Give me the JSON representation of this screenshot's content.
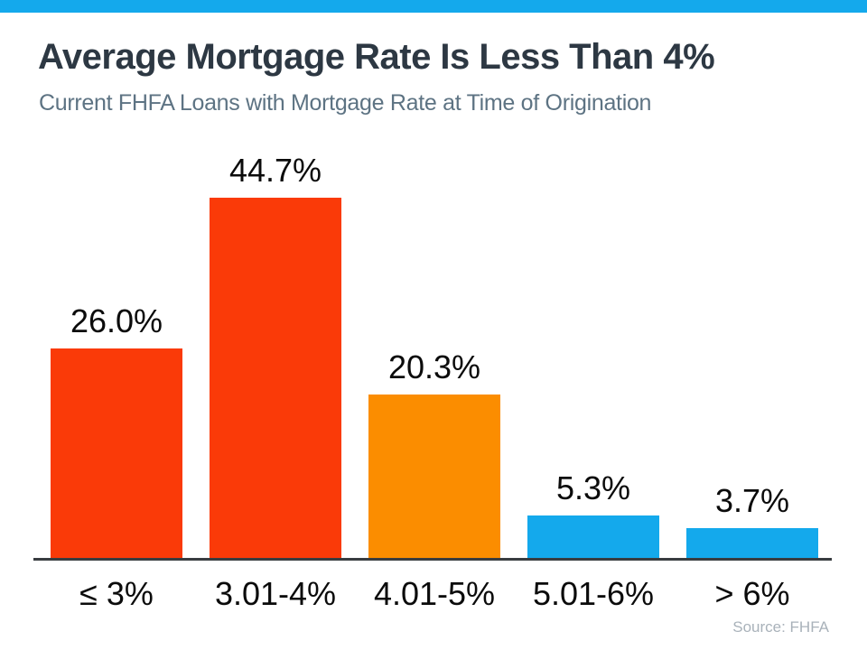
{
  "colors": {
    "accent_bar": "#14A9EC",
    "red_bar": "#FA3A08",
    "orange_bar": "#FB8D00",
    "blue_bar": "#14A9EC",
    "title_text": "#2D3843",
    "subtitle_text": "#5D7383",
    "label_text": "#0B0B0B",
    "axis_line": "#383C40",
    "source_text": "#A9B2BA"
  },
  "header": {
    "title": "Average Mortgage Rate Is Less Than 4%",
    "subtitle": "Current FHFA Loans with Mortgage Rate at Time of Origination"
  },
  "chart_data": {
    "type": "bar",
    "title": "Average Mortgage Rate Is Less Than 4%",
    "subtitle": "Current FHFA Loans with Mortgage Rate at Time of Origination",
    "categories": [
      "≤ 3%",
      "3.01-4%",
      "4.01-5%",
      "5.01-6%",
      "> 6%"
    ],
    "values": [
      26.0,
      44.7,
      20.3,
      5.3,
      3.7
    ],
    "value_labels": [
      "26.0%",
      "44.7%",
      "20.3%",
      "5.3%",
      "3.7%"
    ],
    "bar_colors": [
      "#FA3A08",
      "#FA3A08",
      "#FB8D00",
      "#14A9EC",
      "#14A9EC"
    ],
    "xlabel": "",
    "ylabel": "",
    "ylim": [
      0,
      50
    ],
    "grid": false,
    "legend": false
  },
  "source_note": "Source: FHFA"
}
